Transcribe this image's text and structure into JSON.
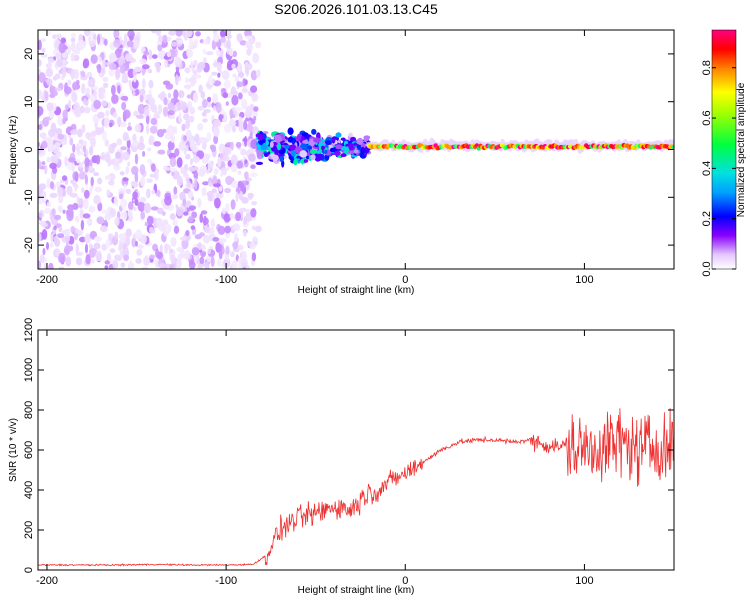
{
  "title": "S206.2026.101.03.13.C45",
  "colors": {
    "snr_line": "#ee3030",
    "spectrogram_low": "#d6b6f5",
    "spectrogram_mid": "#6a00ff",
    "spectrogram_high": "#ff0000",
    "axes": "#000000"
  },
  "chart_data": [
    {
      "type": "heatmap",
      "xlabel": "Height of straight line (km)",
      "ylabel": "Frequency (Hz)",
      "xlim": [
        -205,
        150
      ],
      "ylim": [
        -25,
        25
      ],
      "x_ticks": [
        -200,
        -100,
        0,
        100
      ],
      "y_ticks": [
        -20,
        -10,
        0,
        10,
        20
      ],
      "colorbar": {
        "label": "Normalized spectral amplitude",
        "range": [
          0.0,
          0.95
        ],
        "ticks": [
          "0.0",
          "0.2",
          "0.4",
          "0.6",
          "0.8"
        ],
        "colormap": [
          "#ffffff",
          "#e0c0ff",
          "#8000ff",
          "#0000ff",
          "#00d0ff",
          "#00ff60",
          "#ffff00",
          "#ff8000",
          "#ff0000",
          "#ff00a0"
        ]
      },
      "regions": [
        {
          "x_range": [
            -205,
            -82
          ],
          "freq_range": [
            -25,
            25
          ],
          "amplitude": "low, noise spread across all frequencies"
        },
        {
          "x_range": [
            -82,
            -20
          ],
          "freq_range": [
            -5,
            6
          ],
          "amplitude": "0.2-0.5, scattered around 0 Hz"
        },
        {
          "x_range": [
            -20,
            150
          ],
          "freq_range": [
            -1,
            2
          ],
          "amplitude": "0.6-0.95, narrow line near 1 Hz"
        }
      ]
    },
    {
      "type": "line",
      "xlabel": "Height of straight line (km)",
      "ylabel": "SNR (10 * v/v)",
      "xlim": [
        -205,
        150
      ],
      "ylim": [
        0,
        1200
      ],
      "x_ticks": [
        -200,
        -100,
        0,
        100
      ],
      "y_ticks": [
        0,
        200,
        400,
        600,
        800,
        1000,
        1200
      ],
      "series": [
        {
          "x": [
            -205,
            -180,
            -160,
            -140,
            -120,
            -100,
            -85,
            -78,
            -70,
            -60,
            -50,
            -40,
            -30,
            -22,
            -15,
            -8,
            0,
            10,
            20,
            30,
            40,
            50,
            60,
            70,
            80,
            90,
            100,
            110,
            120,
            130,
            140,
            150
          ],
          "y": [
            25,
            25,
            25,
            28,
            25,
            25,
            28,
            70,
            200,
            260,
            280,
            320,
            300,
            380,
            400,
            450,
            480,
            540,
            600,
            640,
            650,
            650,
            640,
            650,
            620,
            620,
            600,
            620,
            640,
            600,
            620,
            620
          ]
        }
      ]
    }
  ]
}
